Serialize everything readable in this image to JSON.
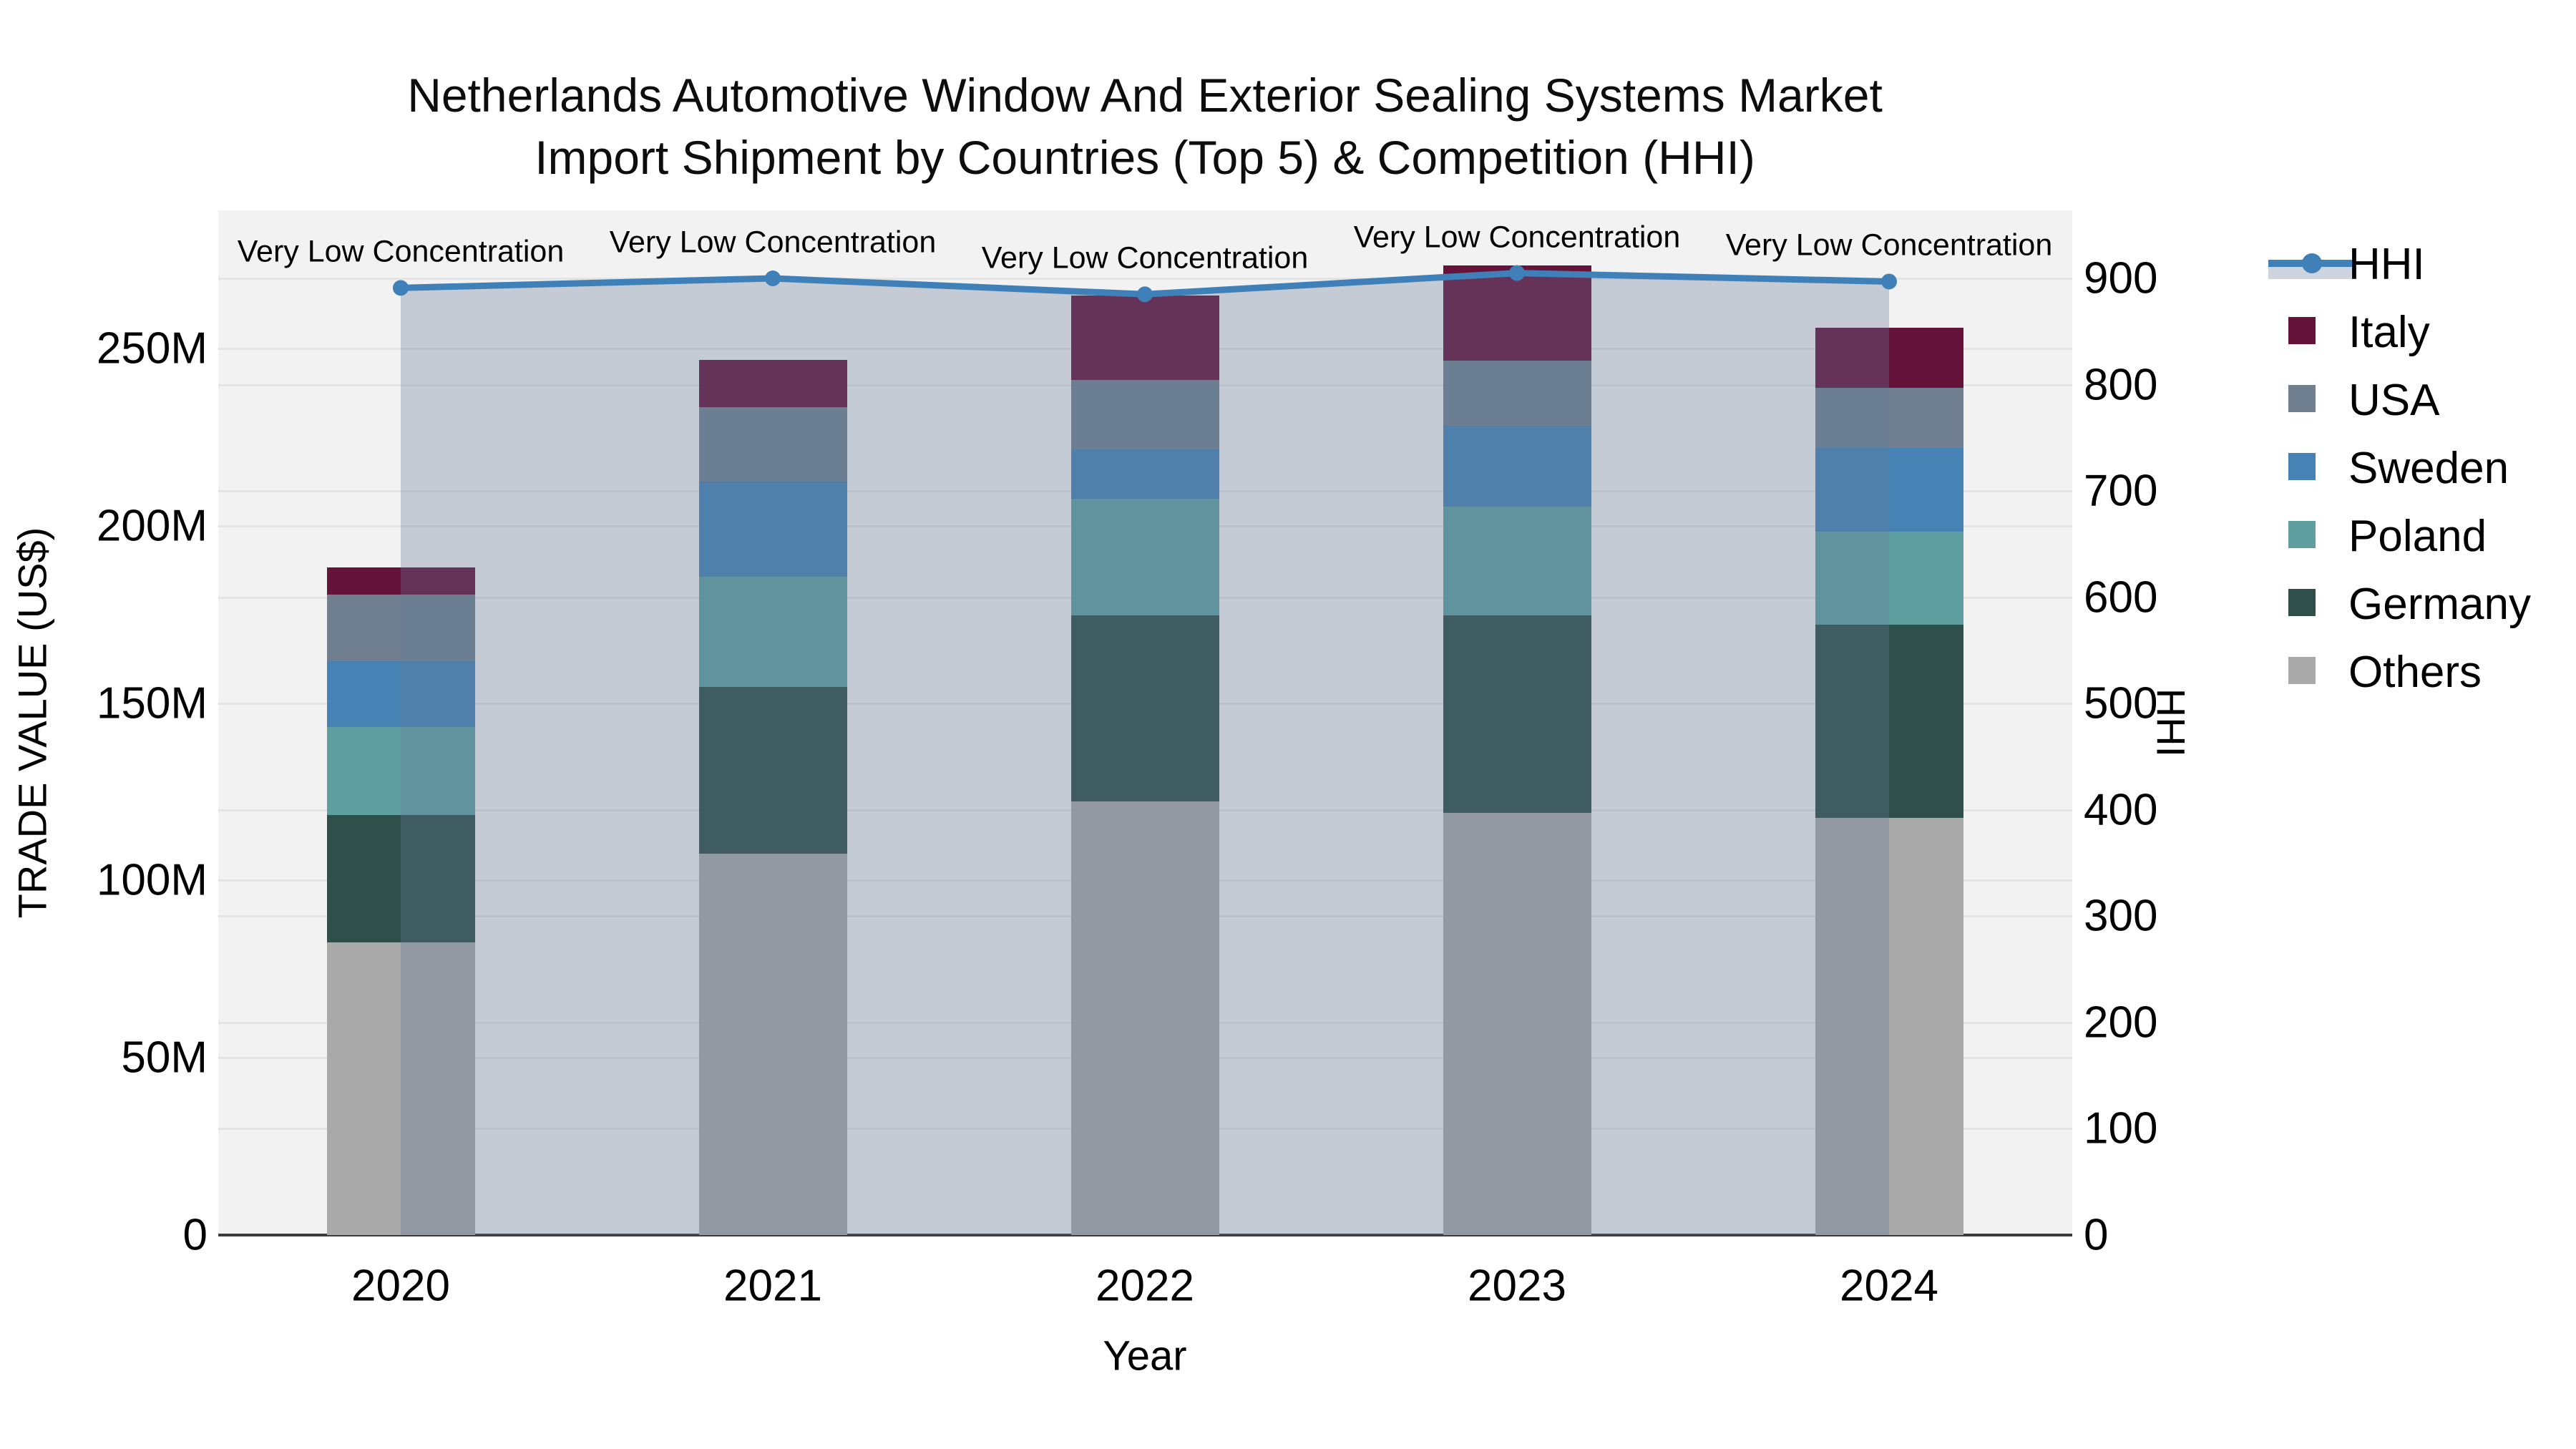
{
  "title": {
    "line1": "Netherlands Automotive Window And Exterior Sealing Systems Market",
    "line2": "Import Shipment by Countries (Top 5) & Competition (HHI)"
  },
  "axes": {
    "x": {
      "title": "Year",
      "categories": [
        "2020",
        "2021",
        "2022",
        "2023",
        "2024"
      ]
    },
    "y_left": {
      "title": "TRADE VALUE (US$)",
      "tick_labels": [
        "0",
        "50M",
        "100M",
        "150M",
        "200M",
        "250M"
      ],
      "tick_values_m": [
        0,
        50,
        100,
        150,
        200,
        250
      ],
      "range_m": [
        0,
        289
      ]
    },
    "y_right": {
      "title": "HHI",
      "tick_labels": [
        "0",
        "100",
        "200",
        "300",
        "400",
        "500",
        "600",
        "700",
        "800",
        "900"
      ],
      "tick_values": [
        0,
        100,
        200,
        300,
        400,
        500,
        600,
        700,
        800,
        900
      ],
      "range": [
        0,
        964
      ]
    }
  },
  "legend": {
    "items": [
      {
        "label": "HHI",
        "type": "line",
        "color": "#4080b8"
      },
      {
        "label": "Italy",
        "type": "swatch",
        "color": "#661339"
      },
      {
        "label": "USA",
        "type": "swatch",
        "color": "#708090"
      },
      {
        "label": "Sweden",
        "type": "swatch",
        "color": "#4682b4"
      },
      {
        "label": "Poland",
        "type": "swatch",
        "color": "#5f9fa0"
      },
      {
        "label": "Germany",
        "type": "swatch",
        "color": "#2f4f4b"
      },
      {
        "label": "Others",
        "type": "swatch",
        "color": "#a9a9a9"
      }
    ]
  },
  "annotations": {
    "text": "Very Low Concentration",
    "per_year": [
      "Very Low Concentration",
      "Very Low Concentration",
      "Very Low Concentration",
      "Very Low Concentration",
      "Very Low Concentration"
    ]
  },
  "chart_data": {
    "type": "combo-stacked-bar-line",
    "categories": [
      "2020",
      "2021",
      "2022",
      "2023",
      "2024"
    ],
    "bar_unit": "Million US$",
    "stack_order_bottom_to_top": [
      "Others",
      "Germany",
      "Poland",
      "Sweden",
      "USA",
      "Italy"
    ],
    "series": [
      {
        "name": "Others",
        "color": "#a9a9a9",
        "values": [
          82.5,
          107.5,
          122.3,
          119.0,
          117.6
        ]
      },
      {
        "name": "Germany",
        "color": "#2f4f4b",
        "values": [
          35.9,
          47.1,
          52.4,
          55.7,
          54.5
        ]
      },
      {
        "name": "Poland",
        "color": "#5f9fa0",
        "values": [
          24.9,
          31.0,
          32.9,
          30.7,
          26.2
        ]
      },
      {
        "name": "Sweden",
        "color": "#4682b4",
        "values": [
          18.5,
          26.9,
          14.0,
          22.8,
          23.6
        ]
      },
      {
        "name": "USA",
        "color": "#708090",
        "values": [
          18.8,
          21.0,
          19.5,
          18.4,
          17.0
        ]
      },
      {
        "name": "Italy",
        "color": "#661339",
        "values": [
          7.7,
          13.3,
          23.9,
          26.8,
          17.0
        ]
      }
    ],
    "totals_m": [
      188.3,
      246.8,
      265.0,
      273.4,
      255.9
    ],
    "hhi_line": {
      "name": "HHI",
      "values": [
        891,
        900,
        885,
        905,
        897
      ],
      "line_color": "#4080b8",
      "fill_color": "rgba(100,122,152,0.32)",
      "axis": "right"
    },
    "ylabel_left": "TRADE VALUE (US$)",
    "ylabel_right": "HHI",
    "xlabel": "Year",
    "grid": true,
    "legend_position": "right",
    "plot_background": "#f2f2f2"
  }
}
